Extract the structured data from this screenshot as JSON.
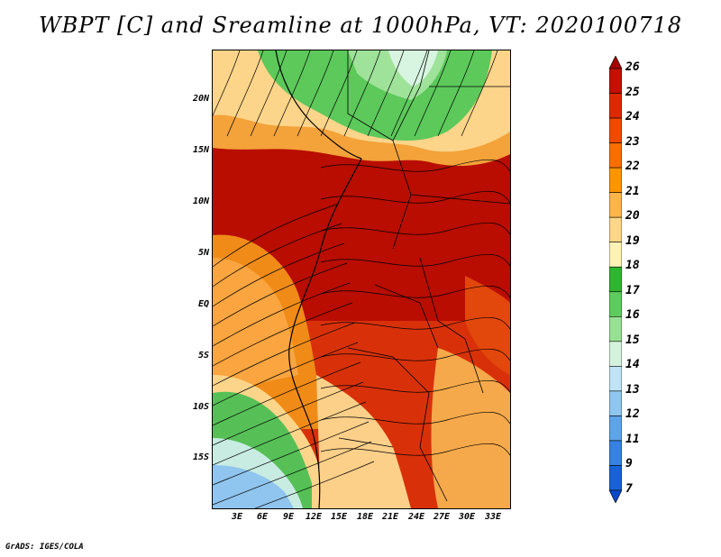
{
  "title": "WBPT [C] and Sreamline at 1000hPa, VT: 2020100718",
  "footer": "GrADS: IGES/COLA",
  "latitude_labels": [
    "20N",
    "15N",
    "10N",
    "5N",
    "EQ",
    "5S",
    "10S",
    "15S"
  ],
  "longitude_labels": [
    "3E",
    "6E",
    "9E",
    "12E",
    "15E",
    "18E",
    "21E",
    "24E",
    "27E",
    "30E",
    "33E"
  ],
  "colorbar": {
    "levels": [
      "26",
      "25",
      "24",
      "23",
      "22",
      "21",
      "20",
      "19",
      "18",
      "17",
      "16",
      "15",
      "14",
      "13",
      "12",
      "11",
      "9",
      "7"
    ],
    "colors": [
      "#a50000",
      "#c31000",
      "#dc2a00",
      "#ef4a00",
      "#f86e00",
      "#fb9500",
      "#fdb54b",
      "#fed687",
      "#fdf2b4",
      "#2fb52f",
      "#5ccd5c",
      "#97e193",
      "#d4f3dc",
      "#c0e4f5",
      "#8ec6ef",
      "#5ea4e8",
      "#3582e0",
      "#1862d6",
      "#0a48c8"
    ]
  }
}
